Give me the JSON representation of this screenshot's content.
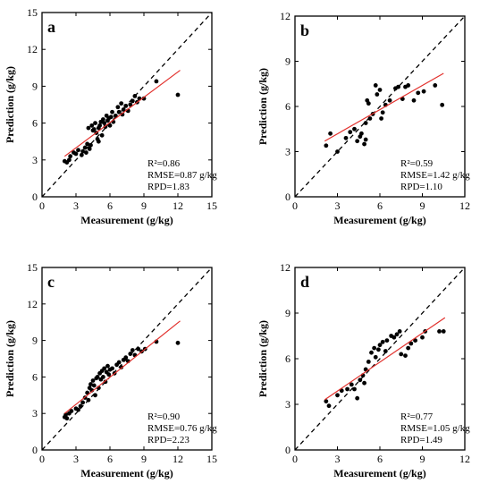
{
  "chart_data": [
    {
      "type": "scatter",
      "panel_label": "a",
      "xlabel": "Measurement (g/kg)",
      "ylabel": "Prediction (g/kg)",
      "xlim": [
        0,
        15
      ],
      "ylim": [
        0,
        15
      ],
      "xticks": [
        "0",
        "3",
        "6",
        "9",
        "12",
        "15"
      ],
      "yticks": [
        "0",
        "3",
        "6",
        "9",
        "12",
        "15"
      ],
      "tick_values": [
        0,
        3,
        6,
        9,
        12,
        15
      ],
      "points": [
        [
          2.0,
          2.9
        ],
        [
          2.2,
          2.8
        ],
        [
          2.4,
          3.0
        ],
        [
          2.5,
          3.3
        ],
        [
          2.8,
          3.6
        ],
        [
          3.0,
          3.5
        ],
        [
          3.2,
          3.8
        ],
        [
          3.5,
          3.4
        ],
        [
          3.6,
          3.7
        ],
        [
          3.8,
          4.0
        ],
        [
          3.9,
          3.6
        ],
        [
          4.0,
          4.3
        ],
        [
          4.1,
          5.6
        ],
        [
          4.2,
          3.9
        ],
        [
          4.3,
          4.2
        ],
        [
          4.4,
          5.8
        ],
        [
          4.5,
          5.4
        ],
        [
          4.6,
          5.5
        ],
        [
          4.7,
          6.0
        ],
        [
          4.8,
          5.2
        ],
        [
          4.9,
          4.7
        ],
        [
          5.0,
          5.6
        ],
        [
          5.0,
          4.5
        ],
        [
          5.1,
          5.8
        ],
        [
          5.2,
          6.1
        ],
        [
          5.3,
          5.0
        ],
        [
          5.4,
          6.3
        ],
        [
          5.5,
          6.0
        ],
        [
          5.6,
          5.7
        ],
        [
          5.7,
          6.6
        ],
        [
          5.8,
          6.2
        ],
        [
          5.9,
          6.4
        ],
        [
          6.0,
          5.8
        ],
        [
          6.1,
          6.5
        ],
        [
          6.2,
          6.9
        ],
        [
          6.3,
          6.1
        ],
        [
          6.5,
          6.6
        ],
        [
          6.7,
          7.3
        ],
        [
          6.8,
          6.9
        ],
        [
          7.0,
          7.6
        ],
        [
          7.1,
          6.7
        ],
        [
          7.2,
          7.1
        ],
        [
          7.4,
          7.4
        ],
        [
          7.6,
          7.0
        ],
        [
          7.8,
          7.5
        ],
        [
          8.0,
          7.8
        ],
        [
          8.2,
          8.2
        ],
        [
          8.4,
          7.7
        ],
        [
          8.6,
          8.0
        ],
        [
          9.0,
          8.0
        ],
        [
          10.1,
          9.4
        ],
        [
          12.0,
          8.3
        ]
      ],
      "fit_line": {
        "x": [
          2.0,
          12.2
        ],
        "y": [
          3.3,
          10.3
        ]
      },
      "stats": [
        "R²=0.86",
        "RMSE=0.87 g/kg",
        "RPD=1.83"
      ]
    },
    {
      "type": "scatter",
      "panel_label": "b",
      "xlabel": "Measurement (g/kg)",
      "ylabel": "Prediction (g/kg)",
      "xlim": [
        0,
        12
      ],
      "ylim": [
        0,
        12
      ],
      "xticks": [
        "0",
        "3",
        "6",
        "9",
        "12"
      ],
      "yticks": [
        "0",
        "3",
        "6",
        "9",
        "12"
      ],
      "tick_values": [
        0,
        3,
        6,
        9,
        12
      ],
      "points": [
        [
          2.2,
          3.4
        ],
        [
          2.5,
          4.2
        ],
        [
          3.0,
          3.0
        ],
        [
          3.6,
          3.9
        ],
        [
          3.9,
          4.3
        ],
        [
          4.2,
          4.5
        ],
        [
          4.4,
          3.7
        ],
        [
          4.6,
          4.0
        ],
        [
          4.7,
          4.2
        ],
        [
          4.9,
          3.5
        ],
        [
          5.0,
          3.8
        ],
        [
          5.0,
          4.9
        ],
        [
          5.1,
          6.4
        ],
        [
          5.2,
          6.2
        ],
        [
          5.3,
          5.2
        ],
        [
          5.5,
          5.5
        ],
        [
          5.7,
          7.4
        ],
        [
          5.8,
          6.8
        ],
        [
          6.0,
          7.1
        ],
        [
          6.1,
          5.2
        ],
        [
          6.2,
          5.6
        ],
        [
          6.4,
          6.1
        ],
        [
          6.7,
          6.4
        ],
        [
          7.1,
          7.2
        ],
        [
          7.3,
          7.3
        ],
        [
          7.6,
          6.5
        ],
        [
          7.8,
          7.3
        ],
        [
          8.0,
          7.4
        ],
        [
          8.4,
          6.4
        ],
        [
          8.7,
          6.9
        ],
        [
          9.1,
          7.0
        ],
        [
          9.9,
          7.4
        ],
        [
          10.4,
          6.1
        ]
      ],
      "fit_line": {
        "x": [
          2.1,
          10.5
        ],
        "y": [
          3.7,
          8.2
        ]
      },
      "stats": [
        "R²=0.59",
        "RMSE=1.42 g/kg",
        "RPD=1.10"
      ]
    },
    {
      "type": "scatter",
      "panel_label": "c",
      "xlabel": "Measurement (g/kg)",
      "ylabel": "Prediction (g/kg)",
      "xlim": [
        0,
        15
      ],
      "ylim": [
        0,
        15
      ],
      "xticks": [
        "0",
        "3",
        "6",
        "9",
        "12",
        "15"
      ],
      "yticks": [
        "0",
        "3",
        "6",
        "9",
        "12",
        "15"
      ],
      "tick_values": [
        0,
        3,
        6,
        9,
        12,
        15
      ],
      "points": [
        [
          2.0,
          2.7
        ],
        [
          2.1,
          2.9
        ],
        [
          2.2,
          2.6
        ],
        [
          2.4,
          3.0
        ],
        [
          2.6,
          3.2
        ],
        [
          3.0,
          3.4
        ],
        [
          3.2,
          3.3
        ],
        [
          3.4,
          3.6
        ],
        [
          3.6,
          3.9
        ],
        [
          3.8,
          4.3
        ],
        [
          4.0,
          4.7
        ],
        [
          4.1,
          4.1
        ],
        [
          4.2,
          5.1
        ],
        [
          4.3,
          5.4
        ],
        [
          4.4,
          4.9
        ],
        [
          4.5,
          5.7
        ],
        [
          4.6,
          5.3
        ],
        [
          4.7,
          4.5
        ],
        [
          4.8,
          5.9
        ],
        [
          4.9,
          6.0
        ],
        [
          5.0,
          5.1
        ],
        [
          5.1,
          6.3
        ],
        [
          5.2,
          5.8
        ],
        [
          5.3,
          6.5
        ],
        [
          5.4,
          6.0
        ],
        [
          5.5,
          6.7
        ],
        [
          5.6,
          5.6
        ],
        [
          5.7,
          6.4
        ],
        [
          5.8,
          6.9
        ],
        [
          5.9,
          6.2
        ],
        [
          6.0,
          6.6
        ],
        [
          6.2,
          6.7
        ],
        [
          6.4,
          6.3
        ],
        [
          6.6,
          7.0
        ],
        [
          6.8,
          7.2
        ],
        [
          7.0,
          6.8
        ],
        [
          7.2,
          7.4
        ],
        [
          7.4,
          7.6
        ],
        [
          7.6,
          7.3
        ],
        [
          7.8,
          7.9
        ],
        [
          8.0,
          8.2
        ],
        [
          8.2,
          7.8
        ],
        [
          8.5,
          8.3
        ],
        [
          8.8,
          8.1
        ],
        [
          9.1,
          8.3
        ],
        [
          10.1,
          8.9
        ],
        [
          12.0,
          8.8
        ]
      ],
      "fit_line": {
        "x": [
          2.0,
          12.2
        ],
        "y": [
          3.0,
          10.6
        ]
      },
      "stats": [
        "R²=0.90",
        "RMSE=0.76 g/kg",
        "RPD=2.23"
      ]
    },
    {
      "type": "scatter",
      "panel_label": "d",
      "xlabel": "Measurement (g/kg)",
      "ylabel": "Prediction (g/kg)",
      "xlim": [
        0,
        12
      ],
      "ylim": [
        0,
        12
      ],
      "xticks": [
        "0",
        "3",
        "6",
        "9",
        "12"
      ],
      "yticks": [
        "0",
        "3",
        "6",
        "9",
        "12"
      ],
      "tick_values": [
        0,
        3,
        6,
        9,
        12
      ],
      "points": [
        [
          2.2,
          3.2
        ],
        [
          2.4,
          2.9
        ],
        [
          3.0,
          3.6
        ],
        [
          3.3,
          3.9
        ],
        [
          3.7,
          4.0
        ],
        [
          4.0,
          4.3
        ],
        [
          4.2,
          4.0
        ],
        [
          4.4,
          3.4
        ],
        [
          4.6,
          4.6
        ],
        [
          4.8,
          4.9
        ],
        [
          4.9,
          4.4
        ],
        [
          5.0,
          5.3
        ],
        [
          5.2,
          5.8
        ],
        [
          5.4,
          6.4
        ],
        [
          5.6,
          6.7
        ],
        [
          5.7,
          6.1
        ],
        [
          5.9,
          6.6
        ],
        [
          6.0,
          6.9
        ],
        [
          6.2,
          7.1
        ],
        [
          6.4,
          6.5
        ],
        [
          6.5,
          7.2
        ],
        [
          6.8,
          7.5
        ],
        [
          7.0,
          7.4
        ],
        [
          7.2,
          7.6
        ],
        [
          7.4,
          7.8
        ],
        [
          7.5,
          6.3
        ],
        [
          7.8,
          6.2
        ],
        [
          8.0,
          6.7
        ],
        [
          8.2,
          7.0
        ],
        [
          8.5,
          7.2
        ],
        [
          9.0,
          7.4
        ],
        [
          9.2,
          7.8
        ],
        [
          10.2,
          7.8
        ],
        [
          10.5,
          7.8
        ]
      ],
      "fit_line": {
        "x": [
          2.1,
          10.6
        ],
        "y": [
          3.3,
          8.7
        ]
      },
      "stats": [
        "R²=0.77",
        "RMSE=1.05 g/kg",
        "RPD=1.49"
      ]
    }
  ]
}
